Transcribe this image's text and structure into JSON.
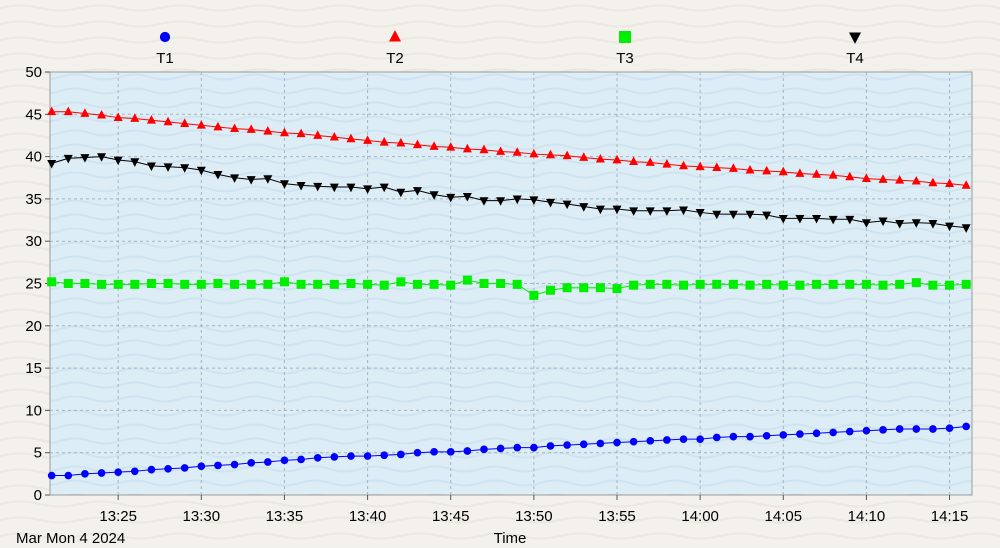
{
  "chart_data": {
    "type": "line",
    "xlabel": "Time",
    "date_label": "Mar Mon 4 2024",
    "ylim": [
      0,
      50
    ],
    "y_ticks": [
      "0",
      "5",
      "10",
      "15",
      "20",
      "25",
      "30",
      "35",
      "40",
      "45",
      "50"
    ],
    "x_ticks": [
      "13:25",
      "13:30",
      "13:35",
      "13:40",
      "13:45",
      "13:50",
      "13:55",
      "14:00",
      "14:05",
      "14:10",
      "14:15"
    ],
    "x_range": [
      "13:21",
      "14:16"
    ],
    "grid": true,
    "legend_position": "top",
    "x": [
      "13:21",
      "13:22",
      "13:23",
      "13:24",
      "13:25",
      "13:26",
      "13:27",
      "13:28",
      "13:29",
      "13:30",
      "13:31",
      "13:32",
      "13:33",
      "13:34",
      "13:35",
      "13:36",
      "13:37",
      "13:38",
      "13:39",
      "13:40",
      "13:41",
      "13:42",
      "13:43",
      "13:44",
      "13:45",
      "13:46",
      "13:47",
      "13:48",
      "13:49",
      "13:50",
      "13:51",
      "13:52",
      "13:53",
      "13:54",
      "13:55",
      "13:56",
      "13:57",
      "13:58",
      "13:59",
      "14:00",
      "14:01",
      "14:02",
      "14:03",
      "14:04",
      "14:05",
      "14:06",
      "14:07",
      "14:08",
      "14:09",
      "14:10",
      "14:11",
      "14:12",
      "14:13",
      "14:14",
      "14:15",
      "14:16"
    ],
    "series": [
      {
        "name": "T1",
        "color": "#0000ff",
        "marker": "circle",
        "values": [
          2.3,
          2.3,
          2.5,
          2.6,
          2.7,
          2.8,
          3.0,
          3.1,
          3.2,
          3.4,
          3.5,
          3.6,
          3.8,
          3.9,
          4.1,
          4.2,
          4.4,
          4.5,
          4.6,
          4.6,
          4.7,
          4.8,
          5.0,
          5.1,
          5.1,
          5.2,
          5.4,
          5.5,
          5.6,
          5.6,
          5.8,
          5.9,
          6.0,
          6.1,
          6.2,
          6.3,
          6.4,
          6.5,
          6.6,
          6.6,
          6.8,
          6.9,
          6.9,
          7.0,
          7.1,
          7.2,
          7.3,
          7.4,
          7.5,
          7.6,
          7.7,
          7.8,
          7.8,
          7.8,
          7.9,
          8.1
        ]
      },
      {
        "name": "T2",
        "color": "#ff0000",
        "marker": "triangle-up",
        "values": [
          45.3,
          45.3,
          45.1,
          44.9,
          44.6,
          44.5,
          44.3,
          44.1,
          43.9,
          43.7,
          43.5,
          43.3,
          43.2,
          43.0,
          42.8,
          42.7,
          42.5,
          42.3,
          42.1,
          41.9,
          41.7,
          41.6,
          41.4,
          41.2,
          41.1,
          40.9,
          40.8,
          40.6,
          40.5,
          40.3,
          40.2,
          40.1,
          39.9,
          39.7,
          39.6,
          39.4,
          39.3,
          39.1,
          38.9,
          38.8,
          38.7,
          38.6,
          38.4,
          38.3,
          38.2,
          38.0,
          37.9,
          37.8,
          37.6,
          37.4,
          37.3,
          37.2,
          37.1,
          36.9,
          36.8,
          36.6
        ]
      },
      {
        "name": "T3",
        "color": "#00ee00",
        "marker": "square",
        "values": [
          25.2,
          25.0,
          25.0,
          24.9,
          24.9,
          24.9,
          25.0,
          25.0,
          24.9,
          24.9,
          25.0,
          24.9,
          24.9,
          24.9,
          25.2,
          24.9,
          24.9,
          24.9,
          25.0,
          24.9,
          24.8,
          25.2,
          24.9,
          24.9,
          24.8,
          25.4,
          25.0,
          25.0,
          24.9,
          23.6,
          24.2,
          24.5,
          24.5,
          24.5,
          24.4,
          24.8,
          24.9,
          24.9,
          24.8,
          24.9,
          24.9,
          24.9,
          24.8,
          24.9,
          24.8,
          24.8,
          24.9,
          24.9,
          24.9,
          24.9,
          24.8,
          24.9,
          25.1,
          24.8,
          24.8,
          24.9
        ]
      },
      {
        "name": "T4",
        "color": "#000000",
        "marker": "triangle-down",
        "values": [
          39.2,
          39.8,
          39.9,
          40.0,
          39.6,
          39.4,
          38.9,
          38.8,
          38.7,
          38.4,
          37.9,
          37.5,
          37.3,
          37.4,
          36.8,
          36.6,
          36.5,
          36.4,
          36.4,
          36.2,
          36.4,
          35.8,
          36.0,
          35.5,
          35.2,
          35.3,
          34.8,
          34.8,
          35.0,
          34.9,
          34.6,
          34.4,
          34.1,
          33.8,
          33.8,
          33.6,
          33.6,
          33.6,
          33.7,
          33.4,
          33.2,
          33.2,
          33.2,
          33.1,
          32.7,
          32.7,
          32.7,
          32.6,
          32.6,
          32.2,
          32.4,
          32.1,
          32.2,
          32.1,
          31.8,
          31.6
        ]
      }
    ]
  }
}
